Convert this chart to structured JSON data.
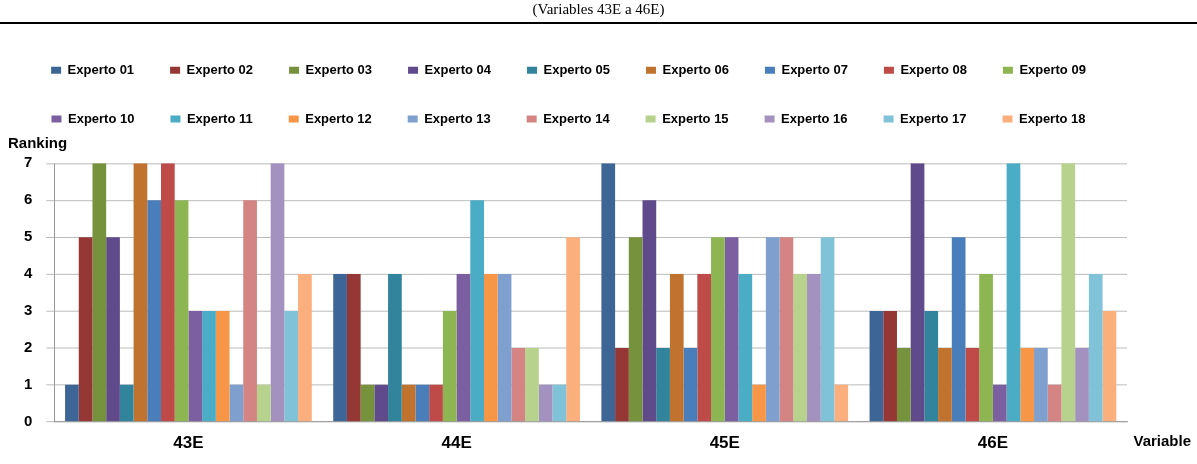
{
  "chart_data": {
    "type": "bar",
    "title": "(Variables 43E a 46E)",
    "xlabel": "Variable",
    "ylabel": "Ranking",
    "categories": [
      "43E",
      "44E",
      "45E",
      "46E"
    ],
    "ylim": [
      0,
      7
    ],
    "yticks": [
      0,
      1,
      2,
      3,
      4,
      5,
      6,
      7
    ],
    "grid": "y",
    "legend": "top",
    "series": [
      {
        "name": "Experto 01",
        "color": "#3d6596",
        "values": [
          1,
          4,
          7,
          3
        ]
      },
      {
        "name": "Experto 02",
        "color": "#943735",
        "values": [
          5,
          4,
          2,
          3
        ]
      },
      {
        "name": "Experto 03",
        "color": "#76923c",
        "values": [
          7,
          1,
          5,
          2
        ]
      },
      {
        "name": "Experto 04",
        "color": "#5f4b8b",
        "values": [
          5,
          1,
          6,
          7
        ]
      },
      {
        "name": "Experto 05",
        "color": "#31849b",
        "values": [
          1,
          4,
          2,
          3
        ]
      },
      {
        "name": "Experto 06",
        "color": "#c0732e",
        "values": [
          7,
          1,
          4,
          2
        ]
      },
      {
        "name": "Experto 07",
        "color": "#4a7ebb",
        "values": [
          6,
          1,
          2,
          5
        ]
      },
      {
        "name": "Experto 08",
        "color": "#be4b48",
        "values": [
          7,
          1,
          4,
          2
        ]
      },
      {
        "name": "Experto 09",
        "color": "#8db552",
        "values": [
          6,
          3,
          5,
          4
        ]
      },
      {
        "name": "Experto 10",
        "color": "#7b5fa0",
        "values": [
          3,
          4,
          5,
          1
        ]
      },
      {
        "name": "Experto 11",
        "color": "#4bacc6",
        "values": [
          3,
          6,
          4,
          7
        ]
      },
      {
        "name": "Experto 12",
        "color": "#f79646",
        "values": [
          3,
          4,
          1,
          2
        ]
      },
      {
        "name": "Experto 13",
        "color": "#7f9fcf",
        "values": [
          1,
          4,
          5,
          2
        ]
      },
      {
        "name": "Experto 14",
        "color": "#d48483",
        "values": [
          6,
          2,
          5,
          1
        ]
      },
      {
        "name": "Experto 15",
        "color": "#b7d28d",
        "values": [
          1,
          2,
          4,
          7
        ]
      },
      {
        "name": "Experto 16",
        "color": "#a392c0",
        "values": [
          7,
          1,
          4,
          2
        ]
      },
      {
        "name": "Experto 17",
        "color": "#80c3d8",
        "values": [
          3,
          1,
          5,
          4
        ]
      },
      {
        "name": "Experto 18",
        "color": "#fbaf7d",
        "values": [
          4,
          5,
          1,
          3
        ]
      }
    ]
  }
}
